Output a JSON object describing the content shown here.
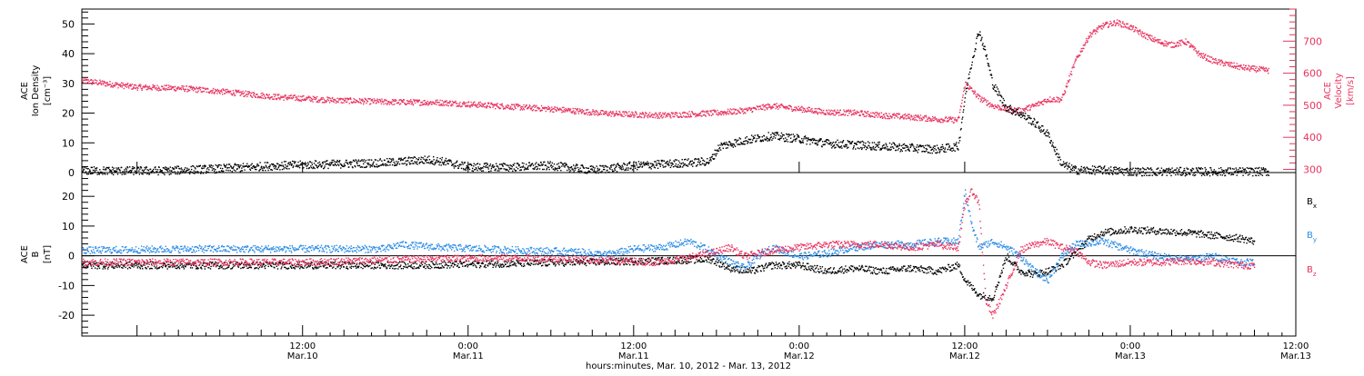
{
  "colors": {
    "black": "#000000",
    "pink": "#e8335f",
    "blue": "#2b8ce6"
  },
  "figure": {
    "xlabel": "hours:minutes, Mar. 10, 2012 - Mar. 13, 2012"
  },
  "chart_data": [
    {
      "type": "scatter",
      "panel": "top",
      "ylabel": "ACE Ion Density [cm⁻³]",
      "ylabel_lines": [
        "ACE",
        "Ion Density",
        "[cm⁻³]"
      ],
      "y2label": "ACE Velocity [km/s]",
      "y2label_lines": [
        "ACE",
        "Velocity",
        "[km/s]"
      ],
      "xlim_hours": [
        -4,
        84
      ],
      "ylim": [
        0,
        55
      ],
      "y2lim": [
        290,
        800
      ],
      "yticks": [
        0,
        10,
        20,
        30,
        40,
        50
      ],
      "y2ticks": [
        300,
        400,
        500,
        600,
        700
      ],
      "x_axis_reference": "hours from 2012-03-10 00:00 UT",
      "series": [
        {
          "name": "",
          "axis": "left",
          "color": "black",
          "quantity": "ion density",
          "points": [
            [
              -4,
              0.8
            ],
            [
              2,
              0.8
            ],
            [
              6,
              1.5
            ],
            [
              10,
              2.5
            ],
            [
              14,
              3
            ],
            [
              18,
              3.5
            ],
            [
              21,
              4.5
            ],
            [
              22,
              4
            ],
            [
              24,
              2
            ],
            [
              27,
              2
            ],
            [
              30,
              2.5
            ],
            [
              33,
              1
            ],
            [
              36,
              2.5
            ],
            [
              40,
              3.5
            ],
            [
              41.5,
              4
            ],
            [
              42.2,
              9
            ],
            [
              44,
              11
            ],
            [
              46,
              12.5
            ],
            [
              48,
              11.5
            ],
            [
              50,
              10
            ],
            [
              52,
              9.5
            ],
            [
              54,
              9
            ],
            [
              56,
              8.5
            ],
            [
              58,
              8
            ],
            [
              59.5,
              9
            ],
            [
              60,
              26
            ],
            [
              60.5,
              38
            ],
            [
              61,
              48
            ],
            [
              61.5,
              40
            ],
            [
              62,
              30
            ],
            [
              63,
              22
            ],
            [
              64,
              20
            ],
            [
              65,
              17
            ],
            [
              66,
              13
            ],
            [
              67,
              3
            ],
            [
              68,
              1
            ],
            [
              70,
              1
            ],
            [
              72,
              0.5
            ],
            [
              76,
              0.5
            ],
            [
              80,
              0.5
            ],
            [
              82,
              0.5
            ]
          ]
        },
        {
          "name": "",
          "axis": "right",
          "color": "pink",
          "quantity": "velocity",
          "points": [
            [
              -4,
              578
            ],
            [
              0,
              558
            ],
            [
              3,
              555
            ],
            [
              6,
              545
            ],
            [
              10,
              528
            ],
            [
              14,
              518
            ],
            [
              18,
              512
            ],
            [
              22,
              510
            ],
            [
              26,
              500
            ],
            [
              30,
              490
            ],
            [
              34,
              476
            ],
            [
              38,
              470
            ],
            [
              40,
              474
            ],
            [
              42,
              478
            ],
            [
              44,
              485
            ],
            [
              46,
              500
            ],
            [
              48,
              490
            ],
            [
              50,
              480
            ],
            [
              52,
              478
            ],
            [
              54,
              470
            ],
            [
              56,
              465
            ],
            [
              58,
              458
            ],
            [
              59.5,
              455
            ],
            [
              60,
              570
            ],
            [
              61,
              525
            ],
            [
              62,
              500
            ],
            [
              63,
              490
            ],
            [
              64,
              485
            ],
            [
              65,
              500
            ],
            [
              66,
              520
            ],
            [
              67,
              520
            ],
            [
              68,
              640
            ],
            [
              69,
              720
            ],
            [
              70,
              750
            ],
            [
              71,
              760
            ],
            [
              72,
              745
            ],
            [
              73,
              720
            ],
            [
              74,
              700
            ],
            [
              75,
              690
            ],
            [
              76,
              700
            ],
            [
              77,
              660
            ],
            [
              78,
              640
            ],
            [
              79,
              630
            ],
            [
              80,
              620
            ],
            [
              81,
              615
            ],
            [
              82,
              610
            ]
          ]
        }
      ]
    },
    {
      "type": "scatter",
      "panel": "bottom",
      "ylabel": "ACE B [nT]",
      "ylabel_lines": [
        "ACE",
        "B",
        "[nT]"
      ],
      "xlim_hours": [
        -4,
        84
      ],
      "ylim": [
        -27,
        28
      ],
      "yticks": [
        -20,
        -10,
        0,
        10,
        20
      ],
      "zero_line": true,
      "x_axis_reference": "hours from 2012-03-10 00:00 UT",
      "xtick_labels": [
        {
          "hour": 0,
          "label": "",
          "sub": ""
        },
        {
          "hour": 12,
          "label": "12:00",
          "sub": "Mar.10"
        },
        {
          "hour": 24,
          "label": "0:00",
          "sub": "Mar.11"
        },
        {
          "hour": 36,
          "label": "12:00",
          "sub": "Mar.11"
        },
        {
          "hour": 48,
          "label": "0:00",
          "sub": "Mar.12"
        },
        {
          "hour": 60,
          "label": "12:00",
          "sub": "Mar.12"
        },
        {
          "hour": 72,
          "label": "0:00",
          "sub": "Mar.13"
        },
        {
          "hour": 84,
          "label": "12:00",
          "sub": "Mar.13"
        }
      ],
      "series": [
        {
          "name": "B",
          "sub": "x",
          "color": "black",
          "points": [
            [
              -4,
              -3
            ],
            [
              4,
              -3
            ],
            [
              12,
              -3
            ],
            [
              20,
              -3
            ],
            [
              26,
              -2.5
            ],
            [
              32,
              -2
            ],
            [
              38,
              -1.5
            ],
            [
              41.5,
              -1
            ],
            [
              43,
              -4
            ],
            [
              44.5,
              -5
            ],
            [
              46,
              -3
            ],
            [
              48,
              -3
            ],
            [
              50,
              -5
            ],
            [
              52,
              -4
            ],
            [
              54,
              -5
            ],
            [
              56,
              -4
            ],
            [
              58,
              -5
            ],
            [
              59.5,
              -3
            ],
            [
              60,
              -8
            ],
            [
              61,
              -13
            ],
            [
              62,
              -14
            ],
            [
              63,
              0
            ],
            [
              64,
              -5
            ],
            [
              65,
              -6
            ],
            [
              66,
              -5
            ],
            [
              67,
              -3
            ],
            [
              68,
              1
            ],
            [
              69,
              6
            ],
            [
              70,
              8
            ],
            [
              72,
              9
            ],
            [
              74,
              8.5
            ],
            [
              76,
              8
            ],
            [
              78,
              7
            ],
            [
              80,
              6
            ],
            [
              81,
              5
            ]
          ]
        },
        {
          "name": "B",
          "sub": "y",
          "color": "blue",
          "points": [
            [
              -4,
              2
            ],
            [
              4,
              2.5
            ],
            [
              12,
              2.5
            ],
            [
              18,
              2.5
            ],
            [
              19,
              4
            ],
            [
              22,
              3
            ],
            [
              28,
              2
            ],
            [
              32,
              1.5
            ],
            [
              34,
              0.5
            ],
            [
              36,
              2.5
            ],
            [
              38,
              3
            ],
            [
              40,
              5
            ],
            [
              41,
              3
            ],
            [
              43,
              -2
            ],
            [
              44,
              -4
            ],
            [
              45,
              0
            ],
            [
              46,
              3
            ],
            [
              48,
              0
            ],
            [
              50,
              1
            ],
            [
              52,
              3
            ],
            [
              54,
              4
            ],
            [
              56,
              4
            ],
            [
              58,
              5
            ],
            [
              59.5,
              5
            ],
            [
              60,
              22
            ],
            [
              60.5,
              10
            ],
            [
              61,
              3
            ],
            [
              62,
              5
            ],
            [
              63,
              3
            ],
            [
              64,
              0
            ],
            [
              65,
              -5
            ],
            [
              66,
              -8
            ],
            [
              67,
              0
            ],
            [
              68,
              4
            ],
            [
              70,
              5
            ],
            [
              72,
              2
            ],
            [
              74,
              0
            ],
            [
              76,
              -1
            ],
            [
              78,
              0
            ],
            [
              80,
              -2
            ],
            [
              81,
              -2
            ]
          ]
        },
        {
          "name": "B",
          "sub": "z",
          "color": "pink",
          "points": [
            [
              -4,
              -2
            ],
            [
              4,
              -2
            ],
            [
              12,
              -2
            ],
            [
              20,
              -1
            ],
            [
              26,
              -0.5
            ],
            [
              32,
              -1
            ],
            [
              38,
              -2
            ],
            [
              41.5,
              1
            ],
            [
              43,
              3
            ],
            [
              44,
              0
            ],
            [
              46,
              2
            ],
            [
              48,
              3
            ],
            [
              50,
              4
            ],
            [
              52,
              4
            ],
            [
              54,
              4
            ],
            [
              56,
              3
            ],
            [
              58,
              4
            ],
            [
              59.5,
              3
            ],
            [
              60,
              18
            ],
            [
              60.5,
              22
            ],
            [
              61,
              18
            ],
            [
              61.5,
              -15
            ],
            [
              62,
              -20
            ],
            [
              63,
              -10
            ],
            [
              64,
              2
            ],
            [
              65,
              4
            ],
            [
              66,
              5
            ],
            [
              67,
              3
            ],
            [
              68,
              2
            ],
            [
              69,
              -2
            ],
            [
              70,
              -3
            ],
            [
              72,
              -2
            ],
            [
              74,
              -2
            ],
            [
              76,
              -1.5
            ],
            [
              78,
              -2
            ],
            [
              80,
              -3
            ],
            [
              81,
              -3
            ]
          ]
        }
      ]
    }
  ]
}
